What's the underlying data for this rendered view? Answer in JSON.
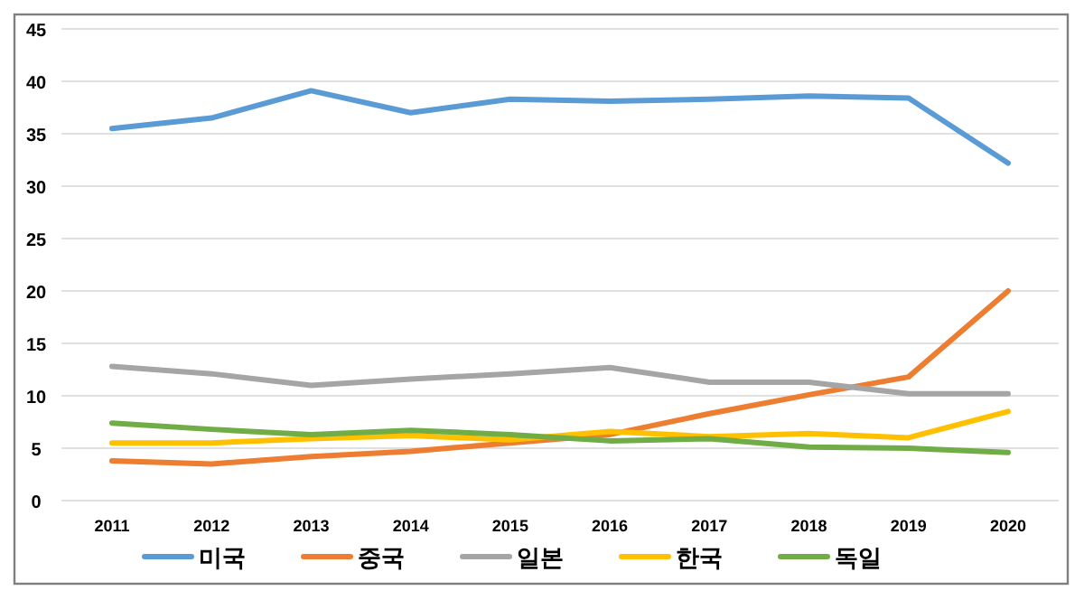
{
  "chart_data": {
    "type": "line",
    "categories": [
      "2011",
      "2012",
      "2013",
      "2014",
      "2015",
      "2016",
      "2017",
      "2018",
      "2019",
      "2020"
    ],
    "series": [
      {
        "name": "미국",
        "color": "#5b9bd5",
        "values": [
          35.5,
          36.5,
          39.1,
          37.0,
          38.3,
          38.1,
          38.3,
          38.6,
          38.4,
          32.2
        ]
      },
      {
        "name": "중국",
        "color": "#ed7d31",
        "values": [
          3.8,
          3.5,
          4.2,
          4.7,
          5.5,
          6.3,
          8.3,
          10.1,
          11.8,
          20.0
        ]
      },
      {
        "name": "일본",
        "color": "#a5a5a5",
        "values": [
          12.8,
          12.1,
          11.0,
          11.6,
          12.1,
          12.7,
          11.3,
          11.3,
          10.2,
          10.2
        ]
      },
      {
        "name": "한국",
        "color": "#ffc000",
        "values": [
          5.5,
          5.5,
          5.9,
          6.2,
          5.8,
          6.6,
          6.1,
          6.4,
          6.0,
          8.5
        ]
      },
      {
        "name": "독일",
        "color": "#70ad47",
        "values": [
          7.4,
          6.8,
          6.3,
          6.7,
          6.3,
          5.7,
          5.9,
          5.1,
          5.0,
          4.6
        ]
      }
    ],
    "ylim": [
      0,
      45
    ],
    "yticks": [
      0,
      5,
      10,
      15,
      20,
      25,
      30,
      35,
      40,
      45
    ],
    "grid": "y",
    "legend": "bottom",
    "marker": "none",
    "line_style": "solid"
  }
}
